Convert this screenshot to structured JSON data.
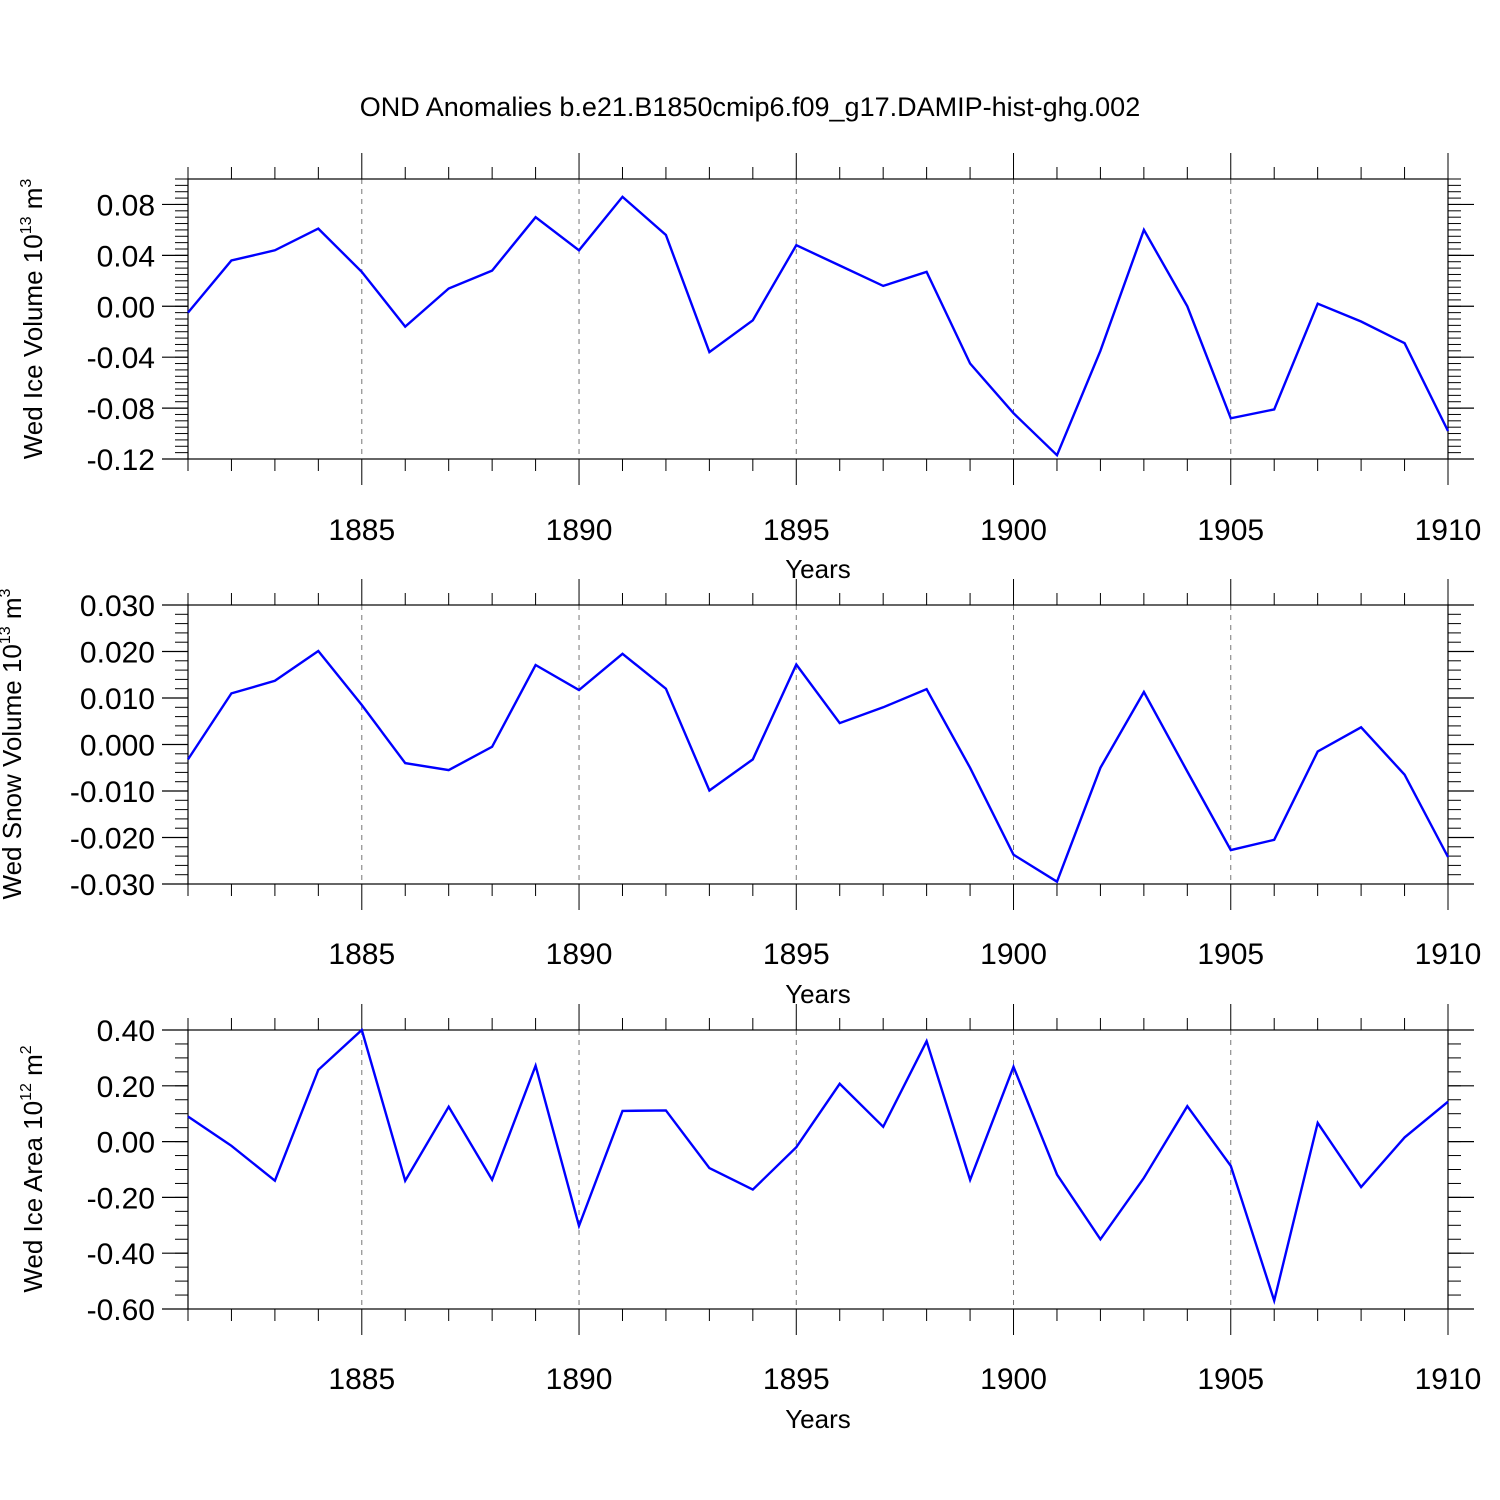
{
  "title": "OND Anomalies b.e21.B1850cmip6.f09_g17.DAMIP-hist-ghg.002",
  "chart_data": [
    {
      "type": "line",
      "ylabel": {
        "main": "Wed Ice Volume 10",
        "exp": "13",
        "unit": " m",
        "unit_exp": "3"
      },
      "xlabel": "Years",
      "xlim": [
        1881,
        1910
      ],
      "ylim": [
        -0.12,
        0.1
      ],
      "x_ticks": [
        1885,
        1890,
        1895,
        1900,
        1905,
        1910
      ],
      "y_ticks": [
        -0.12,
        -0.08,
        -0.04,
        0.0,
        0.04,
        0.08
      ],
      "y_tick_labels": [
        "-0.12",
        "-0.08",
        "-0.04",
        "0.00",
        "0.04",
        "0.08"
      ],
      "line_color": "#0000ff",
      "grid": "dashed vertical at major x ticks",
      "x": [
        1881,
        1882,
        1883,
        1884,
        1885,
        1886,
        1887,
        1888,
        1889,
        1890,
        1891,
        1892,
        1893,
        1894,
        1895,
        1896,
        1897,
        1898,
        1899,
        1900,
        1901,
        1902,
        1903,
        1904,
        1905,
        1906,
        1907,
        1908,
        1909,
        1910
      ],
      "values": [
        -0.005,
        0.036,
        0.044,
        0.061,
        0.027,
        -0.016,
        0.014,
        0.028,
        0.07,
        0.044,
        0.086,
        0.056,
        -0.036,
        -0.011,
        0.048,
        0.032,
        0.016,
        0.027,
        -0.045,
        -0.084,
        -0.117,
        -0.035,
        0.06,
        0.0,
        -0.088,
        -0.081,
        0.002,
        -0.012,
        -0.029,
        -0.098
      ]
    },
    {
      "type": "line",
      "ylabel": {
        "main": "Wed Snow Volume 10",
        "exp": "13",
        "unit": " m",
        "unit_exp": "3"
      },
      "xlabel": "Years",
      "xlim": [
        1881,
        1910
      ],
      "ylim": [
        -0.03,
        0.03
      ],
      "x_ticks": [
        1885,
        1890,
        1895,
        1900,
        1905,
        1910
      ],
      "y_ticks": [
        -0.03,
        -0.02,
        -0.01,
        0.0,
        0.01,
        0.02,
        0.03
      ],
      "y_tick_labels": [
        "-0.030",
        "-0.020",
        "-0.010",
        "0.000",
        "0.010",
        "0.020",
        "0.030"
      ],
      "line_color": "#0000ff",
      "grid": "dashed vertical at major x ticks",
      "x": [
        1881,
        1882,
        1883,
        1884,
        1885,
        1886,
        1887,
        1888,
        1889,
        1890,
        1891,
        1892,
        1893,
        1894,
        1895,
        1896,
        1897,
        1898,
        1899,
        1900,
        1901,
        1902,
        1903,
        1904,
        1905,
        1906,
        1907,
        1908,
        1909,
        1910
      ],
      "values": [
        -0.0032,
        0.011,
        0.0137,
        0.0201,
        0.0085,
        -0.004,
        -0.0055,
        -0.0005,
        0.0171,
        0.0117,
        0.0195,
        0.012,
        -0.0099,
        -0.0032,
        0.0172,
        0.0046,
        0.008,
        0.0119,
        -0.005,
        -0.0237,
        -0.0295,
        -0.005,
        0.0113,
        -0.0058,
        -0.0227,
        -0.0205,
        -0.0015,
        0.0037,
        -0.0065,
        -0.0242
      ]
    },
    {
      "type": "line",
      "ylabel": {
        "main": "Wed Ice Area 10",
        "exp": "12",
        "unit": " m",
        "unit_exp": "2"
      },
      "xlabel": "Years",
      "xlim": [
        1881,
        1910
      ],
      "ylim": [
        -0.6,
        0.4
      ],
      "x_ticks": [
        1885,
        1890,
        1895,
        1900,
        1905,
        1910
      ],
      "y_ticks": [
        -0.6,
        -0.4,
        -0.2,
        0.0,
        0.2,
        0.4
      ],
      "y_tick_labels": [
        "-0.60",
        "-0.40",
        "-0.20",
        "0.00",
        "0.20",
        "0.40"
      ],
      "line_color": "#0000ff",
      "grid": "dashed vertical at major x ticks",
      "x": [
        1881,
        1882,
        1883,
        1884,
        1885,
        1886,
        1887,
        1888,
        1889,
        1890,
        1891,
        1892,
        1893,
        1894,
        1895,
        1896,
        1897,
        1898,
        1899,
        1900,
        1901,
        1902,
        1903,
        1904,
        1905,
        1906,
        1907,
        1908,
        1909,
        1910
      ],
      "values": [
        0.09,
        -0.015,
        -0.14,
        0.257,
        0.4,
        -0.14,
        0.125,
        -0.137,
        0.272,
        -0.302,
        0.11,
        0.112,
        -0.095,
        -0.172,
        -0.02,
        0.207,
        0.053,
        0.36,
        -0.137,
        0.268,
        -0.118,
        -0.35,
        -0.13,
        0.127,
        -0.087,
        -0.57,
        0.067,
        -0.163,
        0.015,
        0.143
      ]
    }
  ]
}
